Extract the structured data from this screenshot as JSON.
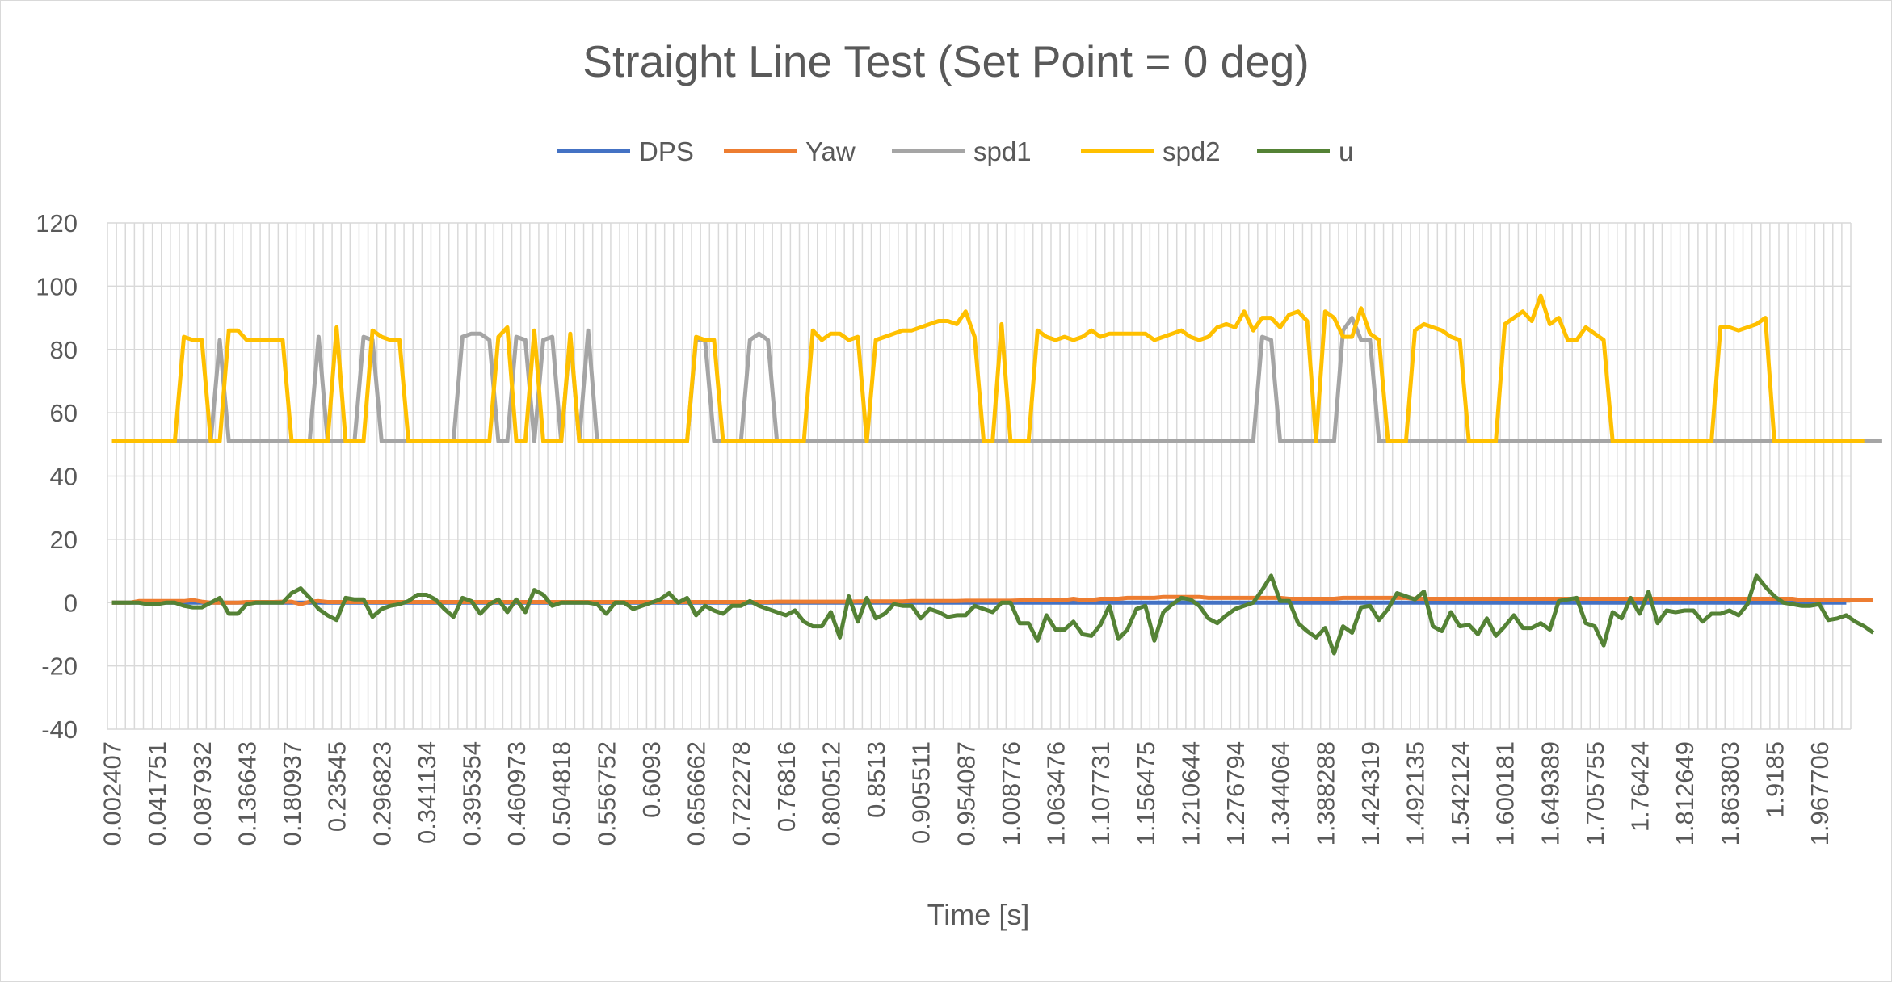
{
  "chart_data": {
    "type": "line",
    "title": "Straight Line Test (Set Point = 0 deg)",
    "xlabel": "Time [s]",
    "ylabel": "",
    "ylim": [
      -40,
      120
    ],
    "yticks": [
      -40,
      -20,
      0,
      20,
      40,
      60,
      80,
      100,
      120
    ],
    "grid": true,
    "legend_position": "top",
    "x_tick_labels": [
      "0.002407",
      "0.041751",
      "0.087932",
      "0.136643",
      "0.180937",
      "0.23545",
      "0.296823",
      "0.341134",
      "0.395354",
      "0.460973",
      "0.504818",
      "0.556752",
      "0.6093",
      "0.656662",
      "0.722278",
      "0.76816",
      "0.800512",
      "0.8513",
      "0.905511",
      "0.954087",
      "1.008776",
      "1.063476",
      "1.107731",
      "1.156475",
      "1.210644",
      "1.276794",
      "1.344064",
      "1.388288",
      "1.424319",
      "1.492135",
      "1.542124",
      "1.600181",
      "1.649389",
      "1.705755",
      "1.76424",
      "1.812649",
      "1.863803",
      "1.9185",
      "1.967706"
    ],
    "num_points": 194,
    "series": [
      {
        "name": "DPS",
        "color": "#4472C4",
        "values": [
          0,
          0,
          0,
          0,
          0,
          0,
          0,
          0,
          0,
          0,
          0,
          0,
          0,
          0,
          0,
          0,
          0,
          0,
          0,
          0,
          0,
          0,
          0,
          0,
          0,
          0,
          0,
          0,
          0,
          0,
          0,
          0,
          0,
          0,
          0,
          0,
          0,
          0,
          0,
          0,
          0,
          0,
          0,
          0,
          0,
          0,
          0,
          0,
          0,
          0,
          0,
          0,
          0,
          0,
          0,
          0,
          0,
          0,
          0,
          0,
          0,
          0,
          0,
          0,
          0,
          0,
          0,
          0,
          0,
          0,
          0,
          0,
          0,
          0,
          0,
          0,
          0,
          0,
          0,
          0,
          0,
          0,
          0,
          0,
          0,
          0,
          0,
          0,
          0,
          0,
          0,
          0,
          0,
          0,
          0,
          0,
          0,
          0,
          0,
          0,
          0,
          0,
          0,
          0,
          0,
          0,
          0,
          0,
          0,
          0,
          0,
          0,
          0,
          0,
          0,
          0,
          0,
          0,
          0,
          0,
          0,
          0,
          0,
          0,
          0,
          0,
          0,
          0,
          0,
          0,
          0,
          0,
          0,
          0,
          0,
          0,
          0,
          0,
          0,
          0,
          0,
          0,
          0,
          0,
          0,
          0,
          0,
          0,
          0,
          0,
          0,
          0,
          0,
          0,
          0,
          0,
          0,
          0,
          0,
          0,
          0,
          0,
          0,
          0,
          0,
          0,
          0,
          0,
          0,
          0,
          0,
          0,
          0,
          0,
          0,
          0,
          0,
          0,
          0,
          0,
          0,
          0,
          0,
          0,
          0,
          0,
          0,
          0,
          0,
          0,
          0,
          0,
          0,
          0
        ]
      },
      {
        "name": "Yaw",
        "color": "#ED7D31",
        "values": [
          0,
          0,
          0,
          0.5,
          0.5,
          0.5,
          0.5,
          0.5,
          0.5,
          0.8,
          0.3,
          0,
          0,
          0,
          0,
          0.2,
          0.2,
          0.2,
          0.2,
          0.3,
          0.3,
          -0.5,
          0.3,
          0.5,
          0.2,
          0.2,
          0.2,
          0.2,
          0.2,
          0.2,
          0.2,
          0.2,
          0.2,
          0.2,
          0.2,
          0.2,
          0.2,
          0.2,
          0.2,
          0.2,
          0.2,
          0.2,
          0.2,
          0.2,
          0.2,
          0.2,
          0.2,
          0.2,
          0.2,
          0.2,
          0.2,
          0.2,
          0.2,
          0.2,
          0.2,
          0.2,
          0.2,
          0.2,
          0.2,
          0.2,
          0.2,
          0.2,
          0.2,
          0.2,
          0.2,
          0.2,
          0.2,
          0.2,
          0.2,
          0.2,
          0.2,
          0.2,
          0.2,
          0.2,
          0.3,
          0.3,
          0.3,
          0.3,
          0.3,
          0.3,
          0.3,
          0.3,
          0.3,
          0.4,
          0.4,
          0.4,
          0.4,
          0.4,
          0.4,
          0.5,
          0.5,
          0.5,
          0.5,
          0.5,
          0.5,
          0.6,
          0.6,
          0.6,
          0.6,
          0.6,
          0.6,
          0.7,
          0.7,
          0.7,
          0.8,
          0.8,
          0.8,
          1.2,
          0.8,
          0.8,
          1.2,
          1.2,
          1.2,
          1.5,
          1.5,
          1.5,
          1.5,
          1.8,
          1.8,
          1.8,
          1.8,
          1.8,
          1.5,
          1.5,
          1.5,
          1.5,
          1.5,
          1.5,
          1.5,
          1.5,
          1.5,
          1.2,
          1.2,
          1.2,
          1.2,
          1.2,
          1.2,
          1.5,
          1.5,
          1.5,
          1.5,
          1.5,
          1.5,
          1.5,
          1.5,
          1.2,
          1.2,
          1.2,
          1.2,
          1.2,
          1.2,
          1.2,
          1.2,
          1.2,
          1.2,
          1.2,
          1.2,
          1.2,
          1.2,
          1.2,
          1.2,
          1.2,
          1.2,
          1.2,
          1.2,
          1.2,
          1.2,
          1.2,
          1.2,
          1.2,
          1.2,
          1.2,
          1.2,
          1.2,
          1.2,
          1.2,
          1.2,
          1.2,
          1.2,
          1.2,
          1.2,
          1.2,
          1.2,
          1.2,
          1.2,
          1.2,
          1.2,
          1.2,
          0.8,
          0.8,
          0.8,
          0.8,
          0.8,
          0.8,
          0.8,
          0.8,
          0.8
        ]
      },
      {
        "name": "spd1",
        "color": "#A5A5A5",
        "values": [
          51,
          51,
          51,
          51,
          51,
          51,
          51,
          51,
          51,
          51,
          51,
          51,
          83,
          51,
          51,
          51,
          51,
          51,
          51,
          51,
          51,
          51,
          51,
          84,
          51,
          51,
          51,
          51,
          84,
          83,
          51,
          51,
          51,
          51,
          51,
          51,
          51,
          51,
          51,
          84,
          85,
          85,
          83,
          51,
          51,
          84,
          83,
          51,
          83,
          84,
          51,
          84,
          51,
          86,
          51,
          51,
          51,
          51,
          51,
          51,
          51,
          51,
          51,
          51,
          51,
          83,
          83,
          51,
          51,
          51,
          51,
          83,
          85,
          83,
          51,
          51,
          51,
          51,
          51,
          51,
          51,
          51,
          51,
          51,
          51,
          51,
          51,
          51,
          51,
          51,
          51,
          51,
          51,
          51,
          51,
          51,
          51,
          51,
          51,
          51,
          51,
          51,
          51,
          51,
          51,
          51,
          51,
          51,
          51,
          51,
          51,
          51,
          51,
          51,
          51,
          51,
          51,
          51,
          51,
          51,
          51,
          51,
          51,
          51,
          51,
          51,
          51,
          51,
          84,
          83,
          51,
          51,
          51,
          51,
          51,
          51,
          51,
          86,
          90,
          83,
          83,
          51,
          51,
          51,
          51,
          51,
          51,
          51,
          51,
          51,
          51,
          51,
          51,
          51,
          51,
          51,
          51,
          51,
          51,
          51,
          51,
          51,
          51,
          51,
          51,
          51,
          51,
          51,
          51,
          51,
          51,
          51,
          51,
          51,
          51,
          51,
          51,
          51,
          51,
          51,
          51,
          51,
          51,
          51,
          51,
          51,
          51,
          51,
          51,
          51,
          51,
          51,
          51,
          51,
          51,
          51,
          51,
          51
        ]
      },
      {
        "name": "spd2",
        "color": "#FFC000",
        "values": [
          51,
          51,
          51,
          51,
          51,
          51,
          51,
          51,
          84,
          83,
          83,
          51,
          51,
          86,
          86,
          83,
          83,
          83,
          83,
          83,
          51,
          51,
          51,
          51,
          51,
          87,
          51,
          51,
          51,
          86,
          84,
          83,
          83,
          51,
          51,
          51,
          51,
          51,
          51,
          51,
          51,
          51,
          51,
          84,
          87,
          51,
          51,
          86,
          51,
          51,
          51,
          85,
          51,
          51,
          51,
          51,
          51,
          51,
          51,
          51,
          51,
          51,
          51,
          51,
          51,
          84,
          83,
          83,
          51,
          51,
          51,
          51,
          51,
          51,
          51,
          51,
          51,
          51,
          86,
          83,
          85,
          85,
          83,
          84,
          51,
          83,
          84,
          85,
          86,
          86,
          87,
          88,
          89,
          89,
          88,
          92,
          84,
          51,
          51,
          88,
          51,
          51,
          51,
          86,
          84,
          83,
          84,
          83,
          84,
          86,
          84,
          85,
          85,
          85,
          85,
          85,
          83,
          84,
          85,
          86,
          84,
          83,
          84,
          87,
          88,
          87,
          92,
          86,
          90,
          90,
          87,
          91,
          92,
          89,
          51,
          92,
          90,
          84,
          84,
          93,
          85,
          83,
          51,
          51,
          51,
          86,
          88,
          87,
          86,
          84,
          83,
          51,
          51,
          51,
          51,
          88,
          90,
          92,
          89,
          97,
          88,
          90,
          83,
          83,
          87,
          85,
          83,
          51,
          51,
          51,
          51,
          51,
          51,
          51,
          51,
          51,
          51,
          51,
          51,
          87,
          87,
          86,
          87,
          88,
          90,
          51,
          51,
          51,
          51,
          51,
          51,
          51,
          51,
          51,
          51,
          51
        ]
      },
      {
        "name": "u",
        "color": "#548235",
        "values": [
          0,
          0,
          0,
          0,
          -0.5,
          -0.5,
          0,
          0,
          -1,
          -1.5,
          -1.5,
          0,
          1.5,
          -3.5,
          -3.5,
          -0.5,
          0,
          0,
          0,
          0,
          3,
          4.5,
          1.5,
          -2,
          -4,
          -5.5,
          1.5,
          1,
          1,
          -4.5,
          -2,
          -1,
          -0.5,
          0.5,
          2.5,
          2.5,
          1,
          -2,
          -4.5,
          1.5,
          0.5,
          -3.5,
          -0.5,
          1,
          -3,
          1,
          -3,
          4,
          2.5,
          -1,
          0,
          0,
          0,
          0,
          -0.5,
          -3.5,
          0,
          0,
          -2,
          -1,
          0,
          1,
          3,
          0,
          1.5,
          -4,
          -1,
          -2.5,
          -3.5,
          -1,
          -1,
          0.5,
          -1,
          -2,
          -3,
          -4,
          -2.5,
          -6,
          -7.5,
          -7.5,
          -3,
          -11,
          2,
          -6,
          1.5,
          -5,
          -3.5,
          -0.5,
          -1,
          -1,
          -5,
          -2,
          -3,
          -4.5,
          -4,
          -4,
          -1,
          -2,
          -3,
          0,
          0,
          -6.5,
          -6.5,
          -12,
          -4,
          -8.5,
          -8.5,
          -6,
          -10,
          -10.5,
          -7,
          -1,
          -11.5,
          -8.5,
          -2,
          -1,
          -12,
          -3,
          -0.5,
          1.5,
          1,
          -1,
          -5,
          -6.5,
          -4,
          -2,
          -1,
          0,
          4,
          8.5,
          0.5,
          0.5,
          -6.5,
          -9,
          -11,
          -8,
          -16,
          -7.5,
          -9.5,
          -1.5,
          -1,
          -5.5,
          -2,
          3,
          2,
          1,
          3.5,
          -7.5,
          -9,
          -3,
          -7.5,
          -7,
          -10,
          -5,
          -10.5,
          -7.5,
          -4,
          -8,
          -8,
          -6.5,
          -8.5,
          0.5,
          1,
          1.5,
          -6.5,
          -7.5,
          -13.5,
          -3,
          -5,
          1.5,
          -3.5,
          3.5,
          -6.5,
          -2.5,
          -3,
          -2.5,
          -2.5,
          -6,
          -3.5,
          -3.5,
          -2.5,
          -4,
          -0.5,
          8.5,
          5,
          2,
          0,
          -0.5,
          -1,
          -1,
          -0.5,
          -5.5,
          -5,
          -4,
          -6,
          -7.5,
          -9.5
        ]
      }
    ]
  }
}
